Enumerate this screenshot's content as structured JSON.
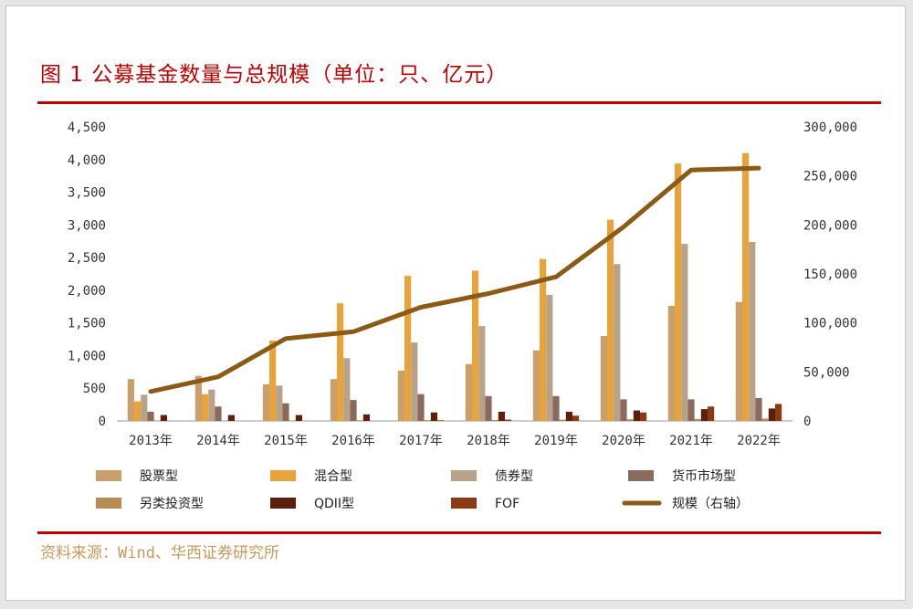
{
  "title": "图 1  公募基金数量与总规模（单位：只、亿元）",
  "source": "资料来源：Wind、华西证券研究所",
  "colors": {
    "title": "#c00000",
    "rule": "#c00000",
    "source": "#c99a5b",
    "stock": "#c9a06b",
    "hybrid": "#e8a33a",
    "bond": "#b8a388",
    "money_market": "#8a6a5c",
    "alternative": "#b98a52",
    "qdii": "#5e1e0c",
    "fof": "#8b3a14",
    "scale": "#8b5a14"
  },
  "chart_data": {
    "type": "bar",
    "categories": [
      "2013年",
      "2014年",
      "2015年",
      "2016年",
      "2017年",
      "2018年",
      "2019年",
      "2020年",
      "2021年",
      "2022年"
    ],
    "left_axis": {
      "ylim": [
        0,
        4500
      ],
      "ticks": [
        "0",
        "500",
        "1,000",
        "1,500",
        "2,000",
        "2,500",
        "3,000",
        "3,500",
        "4,000",
        "4,500"
      ]
    },
    "right_axis": {
      "ylim": [
        0,
        300000
      ],
      "ticks": [
        "0",
        "50,000",
        "100,000",
        "150,000",
        "200,000",
        "250,000",
        "300,000"
      ]
    },
    "series": [
      {
        "name": "股票型",
        "key": "stock",
        "axis": "left",
        "type": "bar",
        "values": [
          640,
          690,
          560,
          640,
          770,
          870,
          1080,
          1300,
          1760,
          1820
        ]
      },
      {
        "name": "混合型",
        "key": "hybrid",
        "axis": "left",
        "type": "bar",
        "values": [
          300,
          410,
          1230,
          1800,
          2220,
          2300,
          2480,
          3080,
          3940,
          4100
        ]
      },
      {
        "name": "债券型",
        "key": "bond",
        "axis": "left",
        "type": "bar",
        "values": [
          400,
          480,
          540,
          960,
          1200,
          1450,
          1930,
          2400,
          2710,
          2740
        ]
      },
      {
        "name": "货币市场型",
        "key": "money_market",
        "axis": "left",
        "type": "bar",
        "values": [
          140,
          220,
          270,
          320,
          410,
          380,
          380,
          330,
          330,
          350
        ]
      },
      {
        "name": "另类投资型",
        "key": "alternative",
        "axis": "left",
        "type": "bar",
        "values": [
          2,
          5,
          8,
          10,
          12,
          15,
          20,
          25,
          30,
          35
        ]
      },
      {
        "name": "QDII型",
        "key": "qdii",
        "axis": "left",
        "type": "bar",
        "values": [
          90,
          90,
          90,
          100,
          130,
          140,
          140,
          160,
          180,
          190
        ]
      },
      {
        "name": "FOF",
        "key": "fof",
        "axis": "left",
        "type": "bar",
        "values": [
          0,
          0,
          0,
          0,
          10,
          20,
          80,
          130,
          220,
          260
        ]
      },
      {
        "name": "规模（右轴）",
        "key": "scale",
        "axis": "right",
        "type": "line",
        "values": [
          30000,
          45000,
          84000,
          91000,
          116000,
          130000,
          147000,
          198000,
          256000,
          258000
        ]
      }
    ],
    "legend_position": "bottom",
    "grid": false
  }
}
